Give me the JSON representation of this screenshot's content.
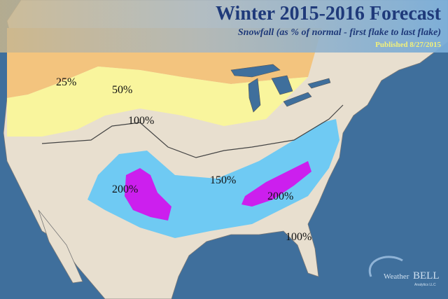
{
  "header": {
    "title": "Winter 2015-2016 Forecast",
    "subtitle": "Snowfall (as % of normal - first flake to last flake)",
    "published": "Published 8/27/2015"
  },
  "contour_labels": [
    "25%",
    "50%",
    "100%",
    "150%",
    "200%",
    "200%",
    "100%"
  ],
  "logo": {
    "name_small": "Weather",
    "name_big": "BELL",
    "tagline": "Analytics LLC"
  }
}
